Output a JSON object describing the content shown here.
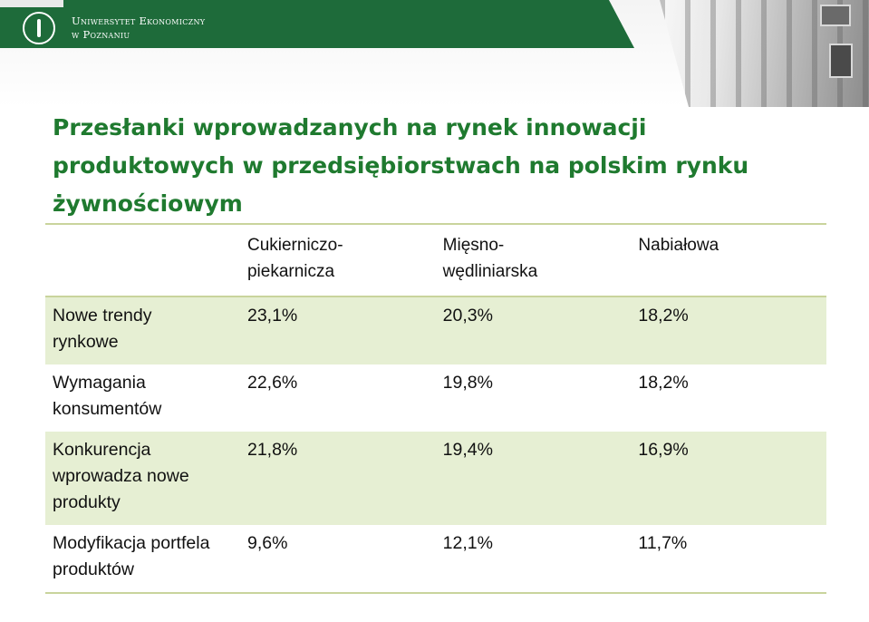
{
  "header": {
    "university_line1": "Uniwersytet Ekonomiczny",
    "university_line2": "w Poznaniu"
  },
  "title": "Przesłanki wprowadzanych na rynek innowacji produktowych w przedsiębiorstwach na polskim rynku żywnościowym",
  "table": {
    "columns": [
      "",
      "Cukierniczo-piekarnicza",
      "Mięsno-wędliniarska",
      "Nabiałowa"
    ],
    "rows": [
      {
        "label": "Nowe trendy rynkowe",
        "values": [
          "23,1%",
          "20,3%",
          "18,2%"
        ]
      },
      {
        "label": "Wymagania konsumentów",
        "values": [
          "22,6%",
          "19,8%",
          "18,2%"
        ]
      },
      {
        "label": "Konkurencja wprowadza nowe produkty",
        "values": [
          "21,8%",
          "19,4%",
          "16,9%"
        ]
      },
      {
        "label": "Modyfikacja portfela produktów",
        "values": [
          "9,6%",
          "12,1%",
          "11,7%"
        ]
      }
    ]
  }
}
